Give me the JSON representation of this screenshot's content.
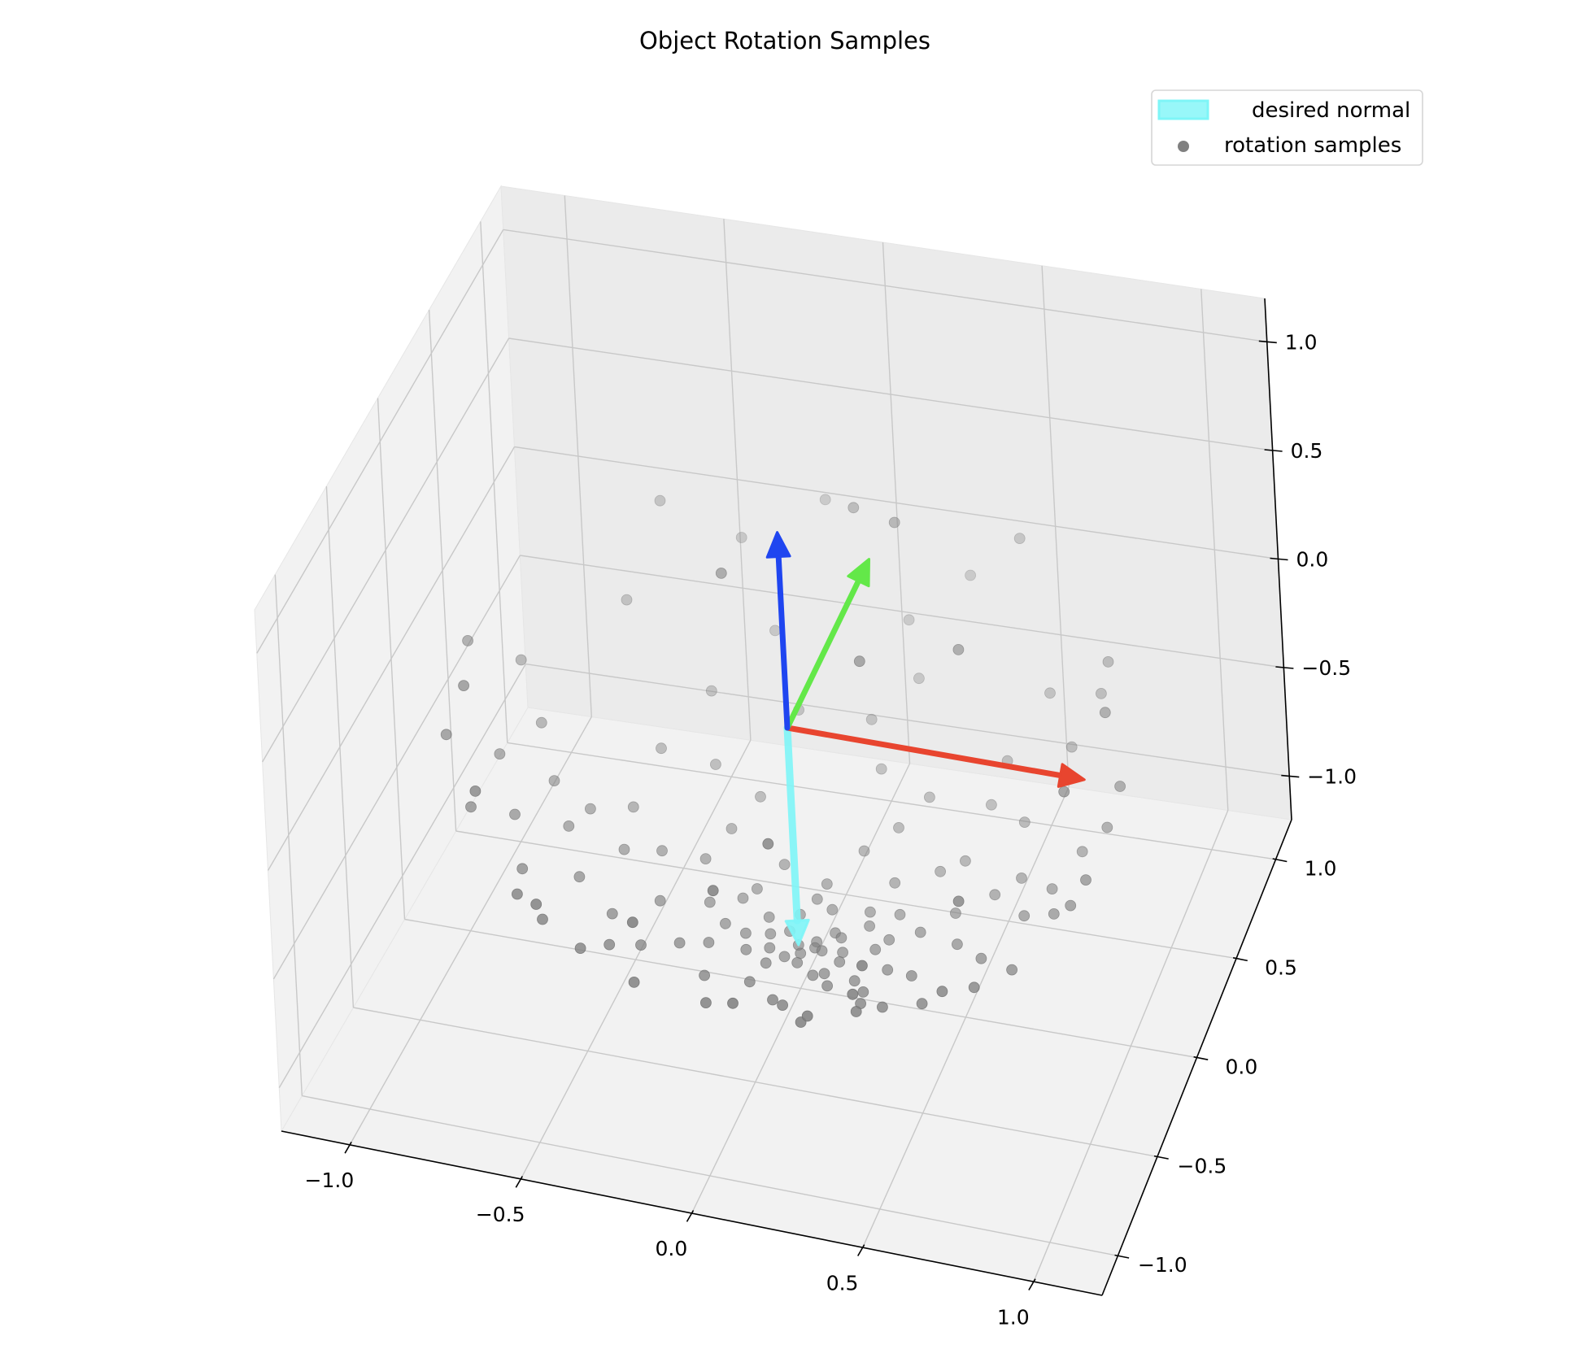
{
  "chart_data": {
    "type": "scatter",
    "title": "Object Rotation Samples",
    "xlabel": "",
    "ylabel": "",
    "zlabel": "",
    "xlim": [
      -1.2,
      1.2
    ],
    "ylim": [
      -1.2,
      1.2
    ],
    "zlim": [
      -1.2,
      1.2
    ],
    "x_ticks": [
      "−1.0",
      "−0.5",
      "0.0",
      "0.5",
      "1.0"
    ],
    "y_ticks": [
      "−1.0",
      "−0.5",
      "0.0",
      "0.5",
      "1.0"
    ],
    "z_ticks": [
      "−1.0",
      "−0.5",
      "0.0",
      "0.5",
      "1.0"
    ],
    "grid": true,
    "legend_position": "top-right",
    "frame_axes": [
      {
        "axis": "x",
        "from": [
          0,
          0,
          0
        ],
        "to": [
          0.9,
          0,
          0
        ],
        "color": "#e8452f"
      },
      {
        "axis": "y",
        "from": [
          0,
          0,
          0
        ],
        "to": [
          0,
          0.9,
          0
        ],
        "color": "#63e849"
      },
      {
        "axis": "z",
        "from": [
          0,
          0,
          0
        ],
        "to": [
          0,
          0,
          0.9
        ],
        "color": "#1f45f0"
      }
    ],
    "series": [
      {
        "name": "desired normal",
        "kind": "arrow",
        "from": [
          0,
          0,
          0
        ],
        "to": [
          0,
          0,
          -1.0
        ],
        "color": "#7ef5f7"
      },
      {
        "name": "rotation samples",
        "kind": "scatter",
        "color": "#808080",
        "points": [
          [
            0.0,
            0.0,
            -1.0
          ],
          [
            0.05,
            0.02,
            -0.99
          ],
          [
            -0.04,
            0.05,
            -0.99
          ],
          [
            0.08,
            -0.03,
            -0.98
          ],
          [
            -0.07,
            -0.06,
            -0.98
          ],
          [
            0.12,
            0.04,
            -0.97
          ],
          [
            -0.11,
            0.08,
            -0.97
          ],
          [
            0.03,
            -0.12,
            -0.97
          ],
          [
            0.15,
            -0.09,
            -0.96
          ],
          [
            -0.15,
            -0.03,
            -0.96
          ],
          [
            0.06,
            0.16,
            -0.96
          ],
          [
            -0.05,
            -0.17,
            -0.95
          ],
          [
            0.19,
            0.1,
            -0.95
          ],
          [
            -0.2,
            0.12,
            -0.94
          ],
          [
            0.1,
            -0.2,
            -0.94
          ],
          [
            0.24,
            -0.02,
            -0.94
          ],
          [
            -0.23,
            -0.14,
            -0.93
          ],
          [
            0.02,
            0.25,
            -0.93
          ],
          [
            0.27,
            0.15,
            -0.92
          ],
          [
            -0.28,
            0.05,
            -0.92
          ],
          [
            0.16,
            -0.26,
            -0.92
          ],
          [
            -0.12,
            0.29,
            -0.91
          ],
          [
            0.31,
            -0.14,
            -0.91
          ],
          [
            -0.3,
            -0.2,
            -0.9
          ],
          [
            0.22,
            0.28,
            -0.9
          ],
          [
            -0.05,
            -0.34,
            -0.89
          ],
          [
            0.36,
            0.05,
            -0.89
          ],
          [
            -0.34,
            0.22,
            -0.88
          ],
          [
            0.28,
            -0.3,
            -0.88
          ],
          [
            -0.18,
            -0.36,
            -0.88
          ],
          [
            0.1,
            0.38,
            -0.87
          ],
          [
            0.4,
            -0.2,
            -0.86
          ],
          [
            -0.4,
            -0.05,
            -0.86
          ],
          [
            0.35,
            0.32,
            -0.85
          ],
          [
            -0.3,
            0.36,
            -0.85
          ],
          [
            0.05,
            -0.45,
            -0.85
          ],
          [
            0.45,
            0.12,
            -0.84
          ],
          [
            -0.46,
            0.18,
            -0.84
          ],
          [
            0.3,
            -0.4,
            -0.84
          ],
          [
            -0.38,
            -0.32,
            -0.83
          ],
          [
            0.18,
            0.48,
            -0.83
          ],
          [
            0.5,
            -0.05,
            -0.82
          ],
          [
            -0.5,
            -0.2,
            -0.82
          ],
          [
            0.42,
            0.35,
            -0.81
          ],
          [
            -0.25,
            0.5,
            -0.81
          ],
          [
            0.1,
            -0.52,
            -0.8
          ],
          [
            0.55,
            0.2,
            -0.8
          ],
          [
            -0.55,
            0.1,
            -0.79
          ],
          [
            0.38,
            -0.45,
            -0.79
          ],
          [
            -0.45,
            -0.4,
            -0.78
          ],
          [
            0.6,
            -0.15,
            -0.77
          ],
          [
            -0.58,
            0.3,
            -0.77
          ],
          [
            0.25,
            0.58,
            -0.76
          ],
          [
            -0.1,
            -0.62,
            -0.76
          ],
          [
            0.62,
            0.25,
            -0.75
          ],
          [
            -0.62,
            -0.12,
            -0.75
          ],
          [
            0.5,
            -0.45,
            -0.74
          ],
          [
            -0.4,
            0.55,
            -0.74
          ],
          [
            0.08,
            0.66,
            -0.74
          ],
          [
            0.68,
            0.05,
            -0.73
          ],
          [
            -0.68,
            0.2,
            -0.72
          ],
          [
            0.45,
            0.55,
            -0.72
          ],
          [
            -0.5,
            -0.52,
            -0.71
          ],
          [
            0.2,
            -0.68,
            -0.71
          ],
          [
            0.72,
            -0.25,
            -0.7
          ],
          [
            -0.3,
            -0.66,
            -0.69
          ],
          [
            0.58,
            0.45,
            -0.68
          ],
          [
            -0.7,
            0.05,
            -0.68
          ],
          [
            0.35,
            -0.62,
            -0.67
          ],
          [
            -0.55,
            0.5,
            -0.66
          ],
          [
            0.75,
            0.12,
            -0.65
          ],
          [
            -0.75,
            -0.25,
            -0.64
          ],
          [
            0.02,
            0.78,
            -0.63
          ],
          [
            0.66,
            -0.45,
            -0.62
          ],
          [
            -0.2,
            0.76,
            -0.62
          ],
          [
            0.8,
            -0.05,
            -0.6
          ],
          [
            -0.78,
            0.18,
            -0.6
          ],
          [
            0.48,
            0.64,
            -0.59
          ],
          [
            -0.6,
            -0.55,
            -0.58
          ],
          [
            0.25,
            -0.78,
            -0.58
          ],
          [
            0.82,
            0.22,
            -0.55
          ],
          [
            -0.82,
            -0.08,
            -0.55
          ],
          [
            0.6,
            -0.58,
            -0.54
          ],
          [
            -0.45,
            0.7,
            -0.54
          ],
          [
            0.05,
            -0.85,
            -0.52
          ],
          [
            0.15,
            0.86,
            -0.48
          ],
          [
            -0.85,
            0.3,
            -0.45
          ],
          [
            0.88,
            -0.15,
            -0.45
          ],
          [
            -0.65,
            -0.62,
            -0.42
          ],
          [
            0.7,
            0.58,
            -0.42
          ],
          [
            -0.9,
            0.05,
            -0.4
          ],
          [
            0.4,
            -0.82,
            -0.4
          ],
          [
            -0.3,
            0.88,
            -0.38
          ],
          [
            0.92,
            0.15,
            -0.35
          ],
          [
            -0.88,
            -0.3,
            -0.35
          ],
          [
            0.6,
            0.72,
            -0.32
          ],
          [
            -0.55,
            -0.76,
            -0.32
          ],
          [
            0.1,
            0.95,
            -0.3
          ],
          [
            0.95,
            -0.22,
            -0.25
          ],
          [
            -0.92,
            0.35,
            -0.22
          ],
          [
            0.45,
            -0.88,
            -0.2
          ],
          [
            -0.7,
            0.7,
            -0.18
          ],
          [
            0.8,
            0.58,
            -0.15
          ],
          [
            -0.2,
            -0.97,
            -0.12
          ],
          [
            0.98,
            0.1,
            -0.1
          ],
          [
            -0.96,
            -0.25,
            -0.08
          ],
          [
            0.3,
            0.95,
            -0.05
          ],
          [
            -0.4,
            0.91,
            0.0
          ],
          [
            0.7,
            -0.71,
            0.02
          ],
          [
            -0.75,
            -0.65,
            0.05
          ],
          [
            0.85,
            0.5,
            0.08
          ],
          [
            -0.98,
            0.05,
            0.1
          ],
          [
            0.05,
            -0.99,
            0.12
          ],
          [
            -0.15,
            0.97,
            0.18
          ],
          [
            0.92,
            -0.3,
            0.22
          ],
          [
            -0.6,
            0.76,
            0.25
          ],
          [
            0.5,
            0.82,
            0.28
          ],
          [
            -0.85,
            -0.4,
            0.3
          ],
          [
            0.2,
            -0.92,
            0.32
          ],
          [
            0.96,
            0.05,
            0.28
          ],
          [
            0.55,
            -0.05,
            0.55
          ],
          [
            0.1,
            0.45,
            0.65
          ],
          [
            0.3,
            0.2,
            0.85
          ],
          [
            -0.1,
            -0.25,
            0.9
          ],
          [
            0.35,
            -0.4,
            0.75
          ],
          [
            0.05,
            0.0,
            -1.0
          ],
          [
            -0.02,
            -0.08,
            -0.99
          ],
          [
            0.09,
            0.08,
            -0.99
          ],
          [
            -0.09,
            0.02,
            -0.99
          ],
          [
            0.14,
            -0.02,
            -0.98
          ],
          [
            -0.03,
            0.13,
            -0.98
          ],
          [
            0.02,
            -0.05,
            -0.99
          ],
          [
            -0.13,
            -0.1,
            -0.97
          ],
          [
            0.17,
            0.18,
            -0.96
          ],
          [
            0.12,
            -0.15,
            -0.97
          ],
          [
            -0.18,
            0.2,
            -0.96
          ],
          [
            0.22,
            -0.18,
            -0.95
          ],
          [
            -0.22,
            0.0,
            -0.96
          ],
          [
            0.0,
            0.21,
            -0.97
          ],
          [
            0.26,
            0.06,
            -0.96
          ]
        ]
      }
    ]
  }
}
